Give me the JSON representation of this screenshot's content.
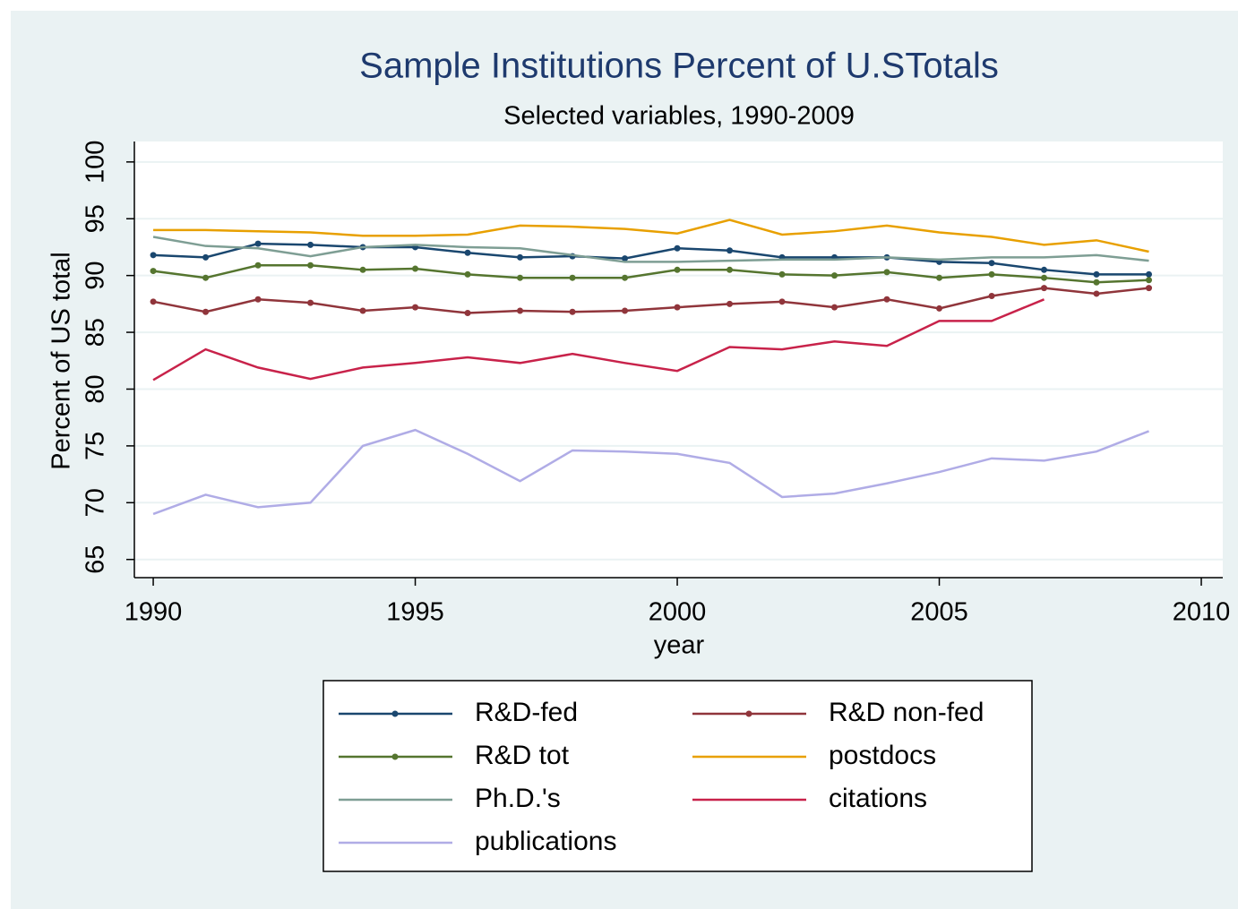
{
  "chart_data": {
    "type": "line",
    "title": "Sample Institutions Percent of U.STotals",
    "subtitle": "Selected variables, 1990-2009",
    "x_label": "year",
    "y_label": "Percent of US total",
    "x": [
      1990,
      1991,
      1992,
      1993,
      1994,
      1995,
      1996,
      1997,
      1998,
      1999,
      2000,
      2001,
      2002,
      2003,
      2004,
      2005,
      2006,
      2007,
      2008,
      2009
    ],
    "series": [
      {
        "name": "R&D-fed",
        "color": "#1a476f",
        "markers": true,
        "values": [
          91.8,
          91.6,
          92.8,
          92.7,
          92.5,
          92.5,
          92.0,
          91.6,
          91.7,
          91.5,
          92.4,
          92.2,
          91.6,
          91.6,
          91.6,
          91.2,
          91.1,
          90.5,
          90.1,
          90.1
        ]
      },
      {
        "name": "R&D non-fed",
        "color": "#90353b",
        "markers": true,
        "values": [
          87.7,
          86.8,
          87.9,
          87.6,
          86.9,
          87.2,
          86.7,
          86.9,
          86.8,
          86.9,
          87.2,
          87.5,
          87.7,
          87.2,
          87.9,
          87.1,
          88.2,
          88.9,
          88.4,
          88.9
        ]
      },
      {
        "name": "R&D tot",
        "color": "#55752f",
        "markers": true,
        "values": [
          90.4,
          89.8,
          90.9,
          90.9,
          90.5,
          90.6,
          90.1,
          89.8,
          89.8,
          89.8,
          90.5,
          90.5,
          90.1,
          90.0,
          90.3,
          89.8,
          90.1,
          89.8,
          89.4,
          89.6
        ]
      },
      {
        "name": "postdocs",
        "color": "#e8a000",
        "markers": false,
        "values": [
          94.0,
          94.0,
          93.9,
          93.8,
          93.5,
          93.5,
          93.6,
          94.4,
          94.3,
          94.1,
          93.7,
          94.9,
          93.6,
          93.9,
          94.4,
          93.8,
          93.4,
          92.7,
          93.1,
          92.1
        ]
      },
      {
        "name": "Ph.D.'s",
        "color": "#7e9e94",
        "markers": false,
        "values": [
          93.4,
          92.6,
          92.4,
          91.7,
          92.5,
          92.7,
          92.5,
          92.4,
          91.8,
          91.2,
          91.2,
          91.3,
          91.4,
          91.4,
          91.6,
          91.4,
          91.6,
          91.6,
          91.8,
          91.3
        ]
      },
      {
        "name": "citations",
        "color": "#c8224a",
        "markers": false,
        "values": [
          80.8,
          83.5,
          81.9,
          80.9,
          81.9,
          82.3,
          82.8,
          82.3,
          83.1,
          82.3,
          81.6,
          83.7,
          83.5,
          84.2,
          83.8,
          86.0,
          86.0,
          87.9,
          null,
          null
        ]
      },
      {
        "name": "publications",
        "color": "#b0ace6",
        "markers": false,
        "values": [
          69.0,
          70.7,
          69.6,
          70.0,
          75.0,
          76.4,
          74.3,
          71.9,
          74.6,
          74.5,
          74.3,
          73.5,
          70.5,
          70.8,
          71.7,
          72.7,
          73.9,
          73.7,
          74.5,
          76.3
        ]
      }
    ],
    "xlim": [
      1989.64,
      2010.41
    ],
    "ylim": [
      63.4,
      101.8
    ],
    "xticks": [
      1990,
      1995,
      2000,
      2005,
      2010
    ],
    "yticks": [
      65,
      70,
      75,
      80,
      85,
      90,
      95,
      100
    ],
    "grid": true,
    "legend": "bottom"
  }
}
